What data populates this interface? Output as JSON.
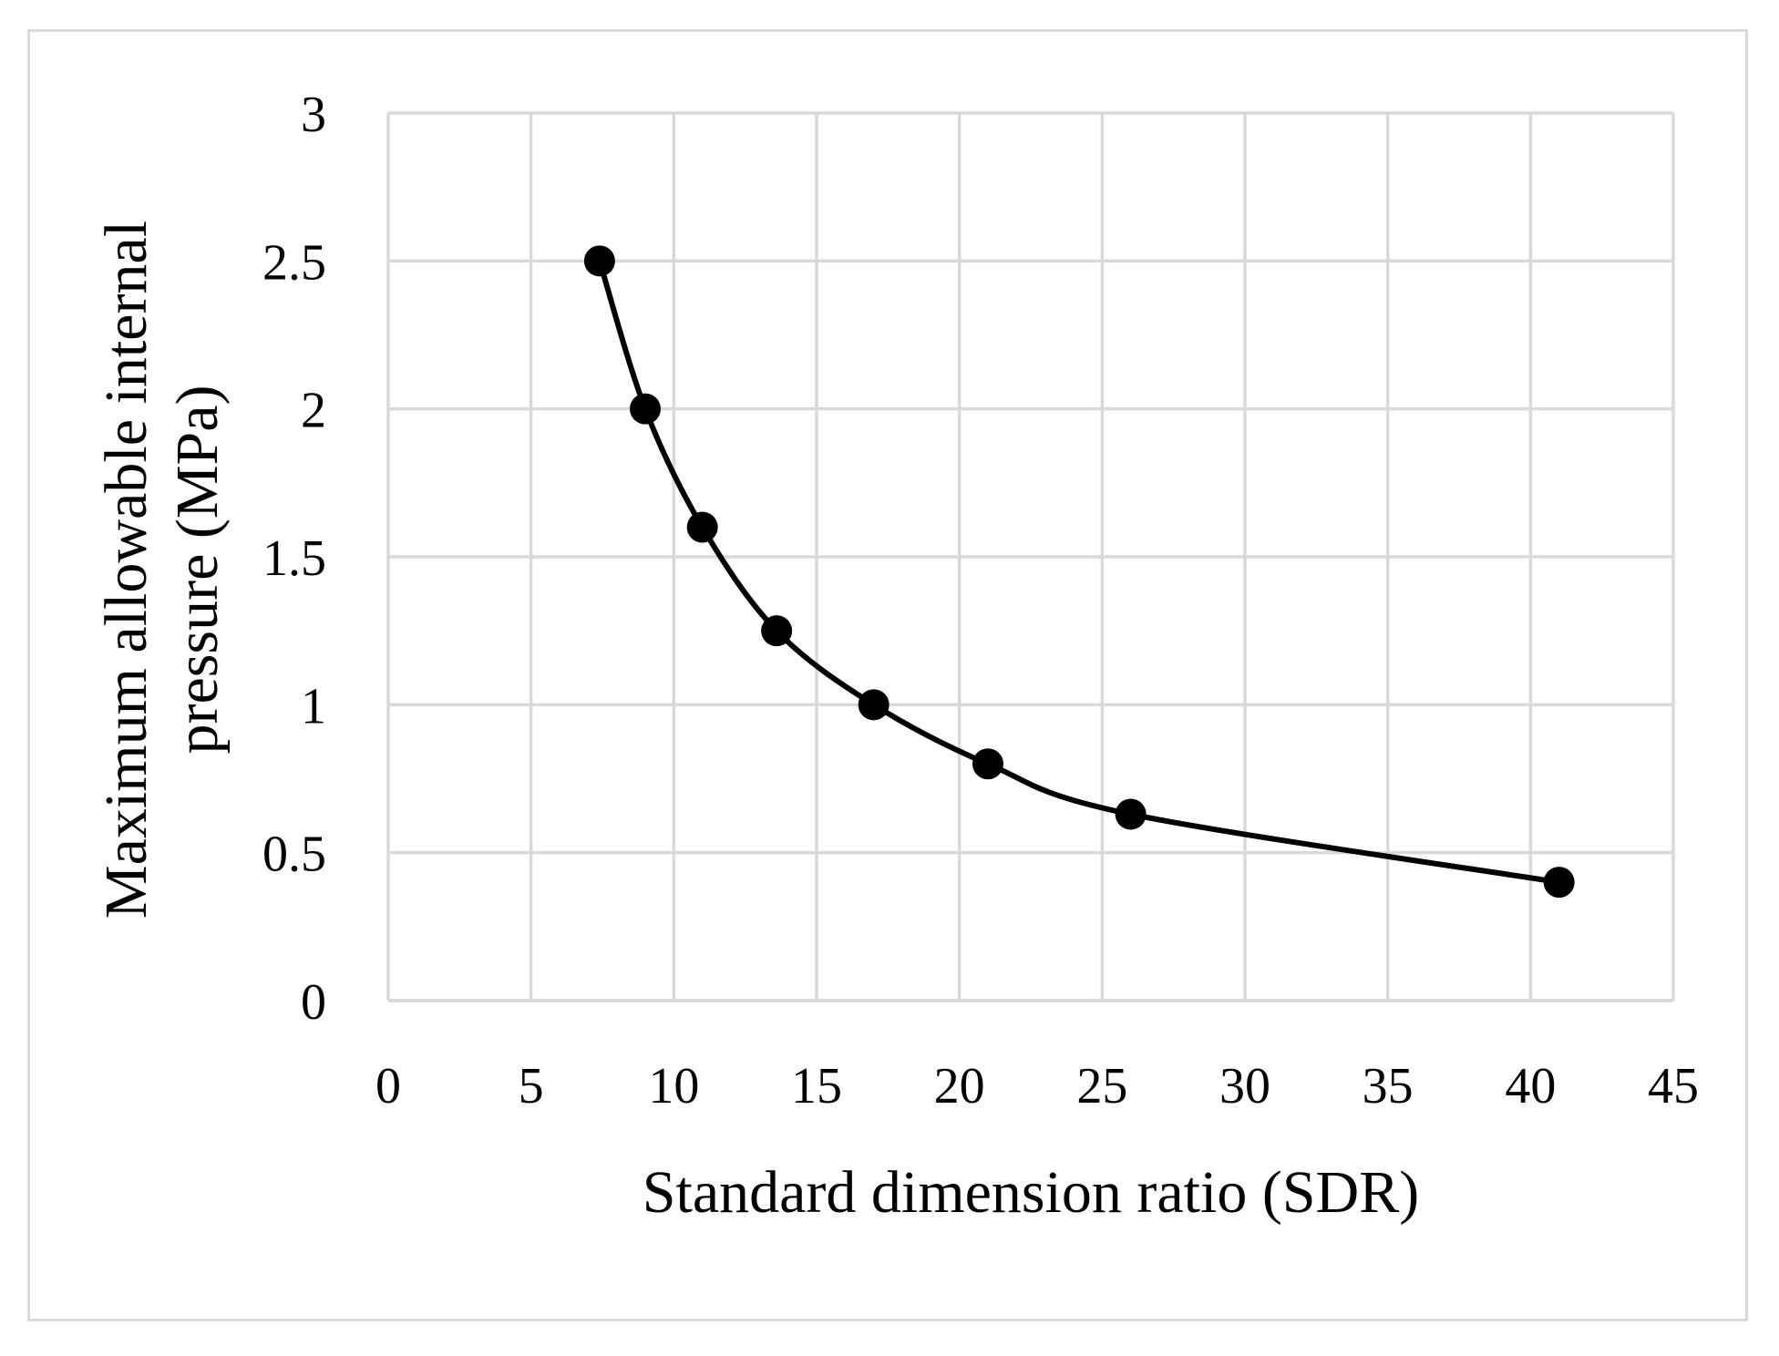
{
  "chart_data": {
    "type": "scatter",
    "title": "",
    "xlabel": "Standard dimension ratio (SDR)",
    "ylabel_lines": [
      "Maximum allowable internal",
      "pressure (MPa)"
    ],
    "xlim": [
      0,
      45
    ],
    "ylim": [
      0,
      3
    ],
    "x_ticks": [
      0,
      5,
      10,
      15,
      20,
      25,
      30,
      35,
      40,
      45
    ],
    "y_ticks": [
      0,
      0.5,
      1,
      1.5,
      2,
      2.5,
      3
    ],
    "x_tick_labels": [
      "0",
      "5",
      "10",
      "15",
      "20",
      "25",
      "30",
      "35",
      "40",
      "45"
    ],
    "y_tick_labels": [
      "0",
      "0.5",
      "1",
      "1.5",
      "2",
      "2.5",
      "3"
    ],
    "grid": true,
    "legend": "none",
    "smooth_line": true,
    "series": [
      {
        "x": [
          7.4,
          9,
          11,
          13.6,
          17,
          21,
          26,
          41
        ],
        "y": [
          2.5,
          2.0,
          1.6,
          1.25,
          1.0,
          0.8,
          0.63,
          0.4
        ],
        "color": "#000000"
      }
    ],
    "colors": {
      "grid": "#d9d9d9",
      "series": "#000000"
    }
  }
}
